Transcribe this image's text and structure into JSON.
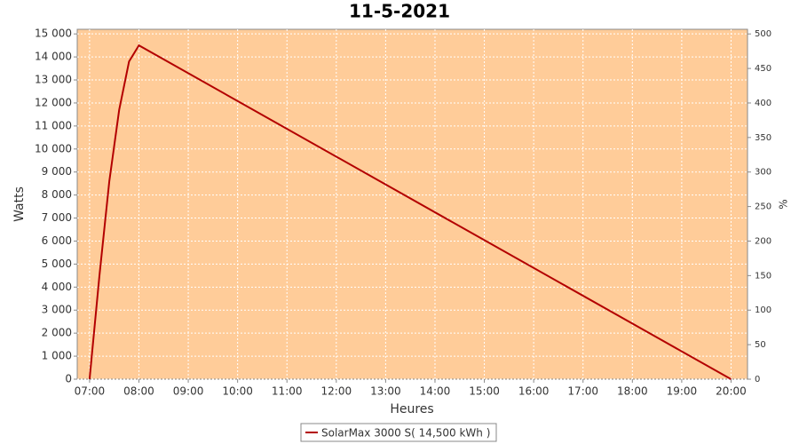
{
  "chart_data": {
    "type": "line",
    "title": "11-5-2021",
    "xlabel": "Heures",
    "ylabel": "Watts",
    "y2label": "%",
    "x": [
      "07:00",
      "07:12",
      "07:24",
      "07:36",
      "07:48",
      "08:00",
      "20:00"
    ],
    "series": [
      {
        "name": "SolarMax 3000 S( 14,500 kWh )",
        "color": "#b30000",
        "values": [
          0,
          4500,
          8600,
          11700,
          13800,
          14500,
          0
        ]
      }
    ],
    "xlim": [
      "06:45",
      "20:20"
    ],
    "xticks": [
      "07:00",
      "08:00",
      "09:00",
      "10:00",
      "11:00",
      "12:00",
      "13:00",
      "14:00",
      "15:00",
      "16:00",
      "17:00",
      "18:00",
      "19:00",
      "20:00"
    ],
    "ylim": [
      0,
      15200
    ],
    "yticks": [
      0,
      {
        "value": 1000,
        "label": "1 000"
      },
      {
        "value": 2000,
        "label": "2 000"
      },
      {
        "value": 3000,
        "label": "3 000"
      },
      {
        "value": 4000,
        "label": "4 000"
      },
      {
        "value": 5000,
        "label": "5 000"
      },
      {
        "value": 6000,
        "label": "6 000"
      },
      {
        "value": 7000,
        "label": "7 000"
      },
      {
        "value": 8000,
        "label": "8 000"
      },
      {
        "value": 9000,
        "label": "9 000"
      },
      {
        "value": 10000,
        "label": "10 000"
      },
      {
        "value": 11000,
        "label": "11 000"
      },
      {
        "value": 12000,
        "label": "12 000"
      },
      {
        "value": 13000,
        "label": "13 000"
      },
      {
        "value": 14000,
        "label": "14 000"
      },
      {
        "value": 15000,
        "label": "15 000"
      }
    ],
    "y2lim": [
      0,
      506.7
    ],
    "y2ticks": [
      0,
      50,
      100,
      150,
      200,
      250,
      300,
      350,
      400,
      450,
      500
    ],
    "grid": true,
    "background": "#ffcc99",
    "legend": "bottom"
  }
}
